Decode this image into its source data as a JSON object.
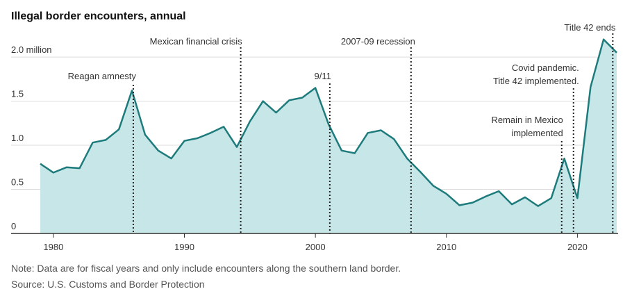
{
  "chart_data": {
    "type": "area",
    "title": "Illegal border encounters, annual",
    "note": "Note: Data are for fiscal years and only include encounters along the southern land border.",
    "source": "Source: U.S. Customs and Border Protection",
    "x": [
      1979,
      1980,
      1981,
      1982,
      1983,
      1984,
      1985,
      1986,
      1987,
      1988,
      1989,
      1990,
      1991,
      1992,
      1993,
      1994,
      1995,
      1996,
      1997,
      1998,
      1999,
      2000,
      2001,
      2002,
      2003,
      2004,
      2005,
      2006,
      2007,
      2008,
      2009,
      2010,
      2011,
      2012,
      2013,
      2014,
      2015,
      2016,
      2017,
      2018,
      2019,
      2020,
      2021,
      2022,
      2023
    ],
    "values": [
      0.79,
      0.69,
      0.75,
      0.74,
      1.03,
      1.06,
      1.18,
      1.62,
      1.12,
      0.94,
      0.85,
      1.05,
      1.08,
      1.14,
      1.21,
      0.98,
      1.27,
      1.5,
      1.37,
      1.51,
      1.54,
      1.65,
      1.24,
      0.94,
      0.91,
      1.14,
      1.17,
      1.07,
      0.85,
      0.7,
      0.54,
      0.45,
      0.32,
      0.35,
      0.42,
      0.48,
      0.33,
      0.41,
      0.31,
      0.4,
      0.85,
      0.4,
      1.66,
      2.2,
      2.05
    ],
    "color": "#1e7b7c",
    "fill_color": "#c6e6e7",
    "xlim": [
      1979,
      2023
    ],
    "xticks": [
      1980,
      1990,
      2000,
      2010,
      2020
    ],
    "ylim": [
      0,
      2.3
    ],
    "yticks": [
      0,
      0.5,
      {
        "value": 1,
        "label": "1.0"
      },
      1.5,
      {
        "value": 2,
        "label": "2.0 million"
      }
    ],
    "grid": true,
    "annotations": [
      {
        "x": 1986.1,
        "text": [
          "Reagan amnesty"
        ]
      },
      {
        "x": 1994.3,
        "text": [
          "Mexican financial crisis"
        ]
      },
      {
        "x": 2001.1,
        "text": [
          "9/11"
        ]
      },
      {
        "x": 2007.3,
        "text": [
          "2007-09 recession"
        ]
      },
      {
        "x": 2018.8,
        "text": [
          "Remain in Mexico",
          "implemented"
        ]
      },
      {
        "x": 2019.7,
        "text": [
          "Covid pandemic.",
          "Title 42 implemented."
        ]
      },
      {
        "x": 2022.7,
        "text": [
          "Title 42 ends"
        ]
      }
    ]
  }
}
